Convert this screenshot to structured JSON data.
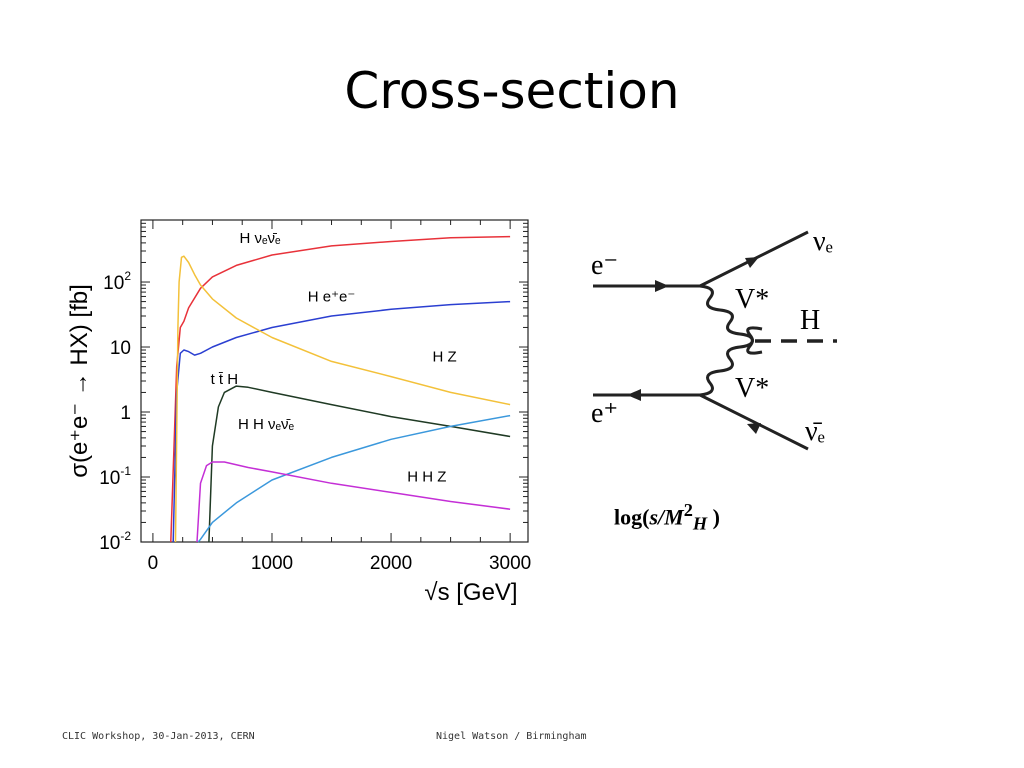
{
  "slide": {
    "title": "Cross-section",
    "footer_left": "CLIC Workshop, 30-Jan-2013, CERN",
    "footer_center": "Nigel Watson / Birmingham"
  },
  "chart_data": {
    "type": "line",
    "xlabel": "√s [GeV]",
    "ylabel": "σ(e⁺e⁻ → HX) [fb]",
    "xlim": [
      -100,
      3150
    ],
    "ylim": [
      0.01,
      900
    ],
    "yscale": "log",
    "xticks": [
      0,
      1000,
      2000,
      3000
    ],
    "yticks": [
      {
        "base": "10",
        "exp": "-2",
        "value": 0.01
      },
      {
        "base": "10",
        "exp": "-1",
        "value": 0.1
      },
      {
        "base": "1",
        "exp": "",
        "value": 1
      },
      {
        "base": "10",
        "exp": "",
        "value": 10
      },
      {
        "base": "10",
        "exp": "2",
        "value": 100
      }
    ],
    "grid": false,
    "series": [
      {
        "name": "H νₑν̄ₑ",
        "color": "#e8323a",
        "x": [
          150,
          200,
          230,
          260,
          300,
          400,
          500,
          700,
          1000,
          1500,
          2000,
          2500,
          3000
        ],
        "y": [
          0.01,
          5,
          20,
          25,
          40,
          80,
          120,
          180,
          260,
          360,
          420,
          480,
          500
        ]
      },
      {
        "name": "H e⁺e⁻",
        "color": "#2b3fd1",
        "x": [
          170,
          200,
          230,
          260,
          300,
          350,
          400,
          500,
          700,
          1000,
          1500,
          2000,
          2500,
          3000
        ],
        "y": [
          0.01,
          2,
          8,
          9,
          8.5,
          7.5,
          8,
          10,
          14,
          20,
          30,
          38,
          45,
          50
        ]
      },
      {
        "name": "H Z",
        "color": "#f3c13a",
        "x": [
          190,
          210,
          220,
          240,
          260,
          300,
          350,
          400,
          500,
          700,
          1000,
          1500,
          2000,
          2500,
          3000
        ],
        "y": [
          0.01,
          20,
          100,
          240,
          250,
          200,
          130,
          90,
          55,
          28,
          14,
          6,
          3.5,
          2,
          1.3
        ]
      },
      {
        "name": "t t̄ H",
        "color": "#1f3a24",
        "x": [
          470,
          500,
          550,
          600,
          700,
          800,
          1000,
          1500,
          2000,
          2500,
          3000
        ],
        "y": [
          0.01,
          0.3,
          1.2,
          2.0,
          2.5,
          2.4,
          2.0,
          1.3,
          0.85,
          0.6,
          0.42
        ]
      },
      {
        "name": "H H νₑν̄ₑ",
        "color": "#3b98dc",
        "x": [
          380,
          400,
          500,
          700,
          1000,
          1500,
          2000,
          2500,
          3000
        ],
        "y": [
          0.01,
          0.011,
          0.02,
          0.04,
          0.09,
          0.2,
          0.38,
          0.6,
          0.88
        ]
      },
      {
        "name": "H H Z",
        "color": "#c42fd6",
        "x": [
          370,
          400,
          450,
          500,
          600,
          800,
          1000,
          1500,
          2000,
          2500,
          3000
        ],
        "y": [
          0.01,
          0.08,
          0.15,
          0.17,
          0.17,
          0.14,
          0.12,
          0.08,
          0.058,
          0.042,
          0.032
        ]
      }
    ]
  },
  "feynman": {
    "labels": [
      "e⁻",
      "e⁺",
      "V*",
      "V*",
      "H",
      "νₑ",
      "ν̄ₑ"
    ]
  },
  "formula": {
    "prefix": "log(",
    "var_s": "s",
    "slash": "/",
    "var_m": "M",
    "exp": "2",
    "sub": "H",
    "suffix": " )"
  }
}
